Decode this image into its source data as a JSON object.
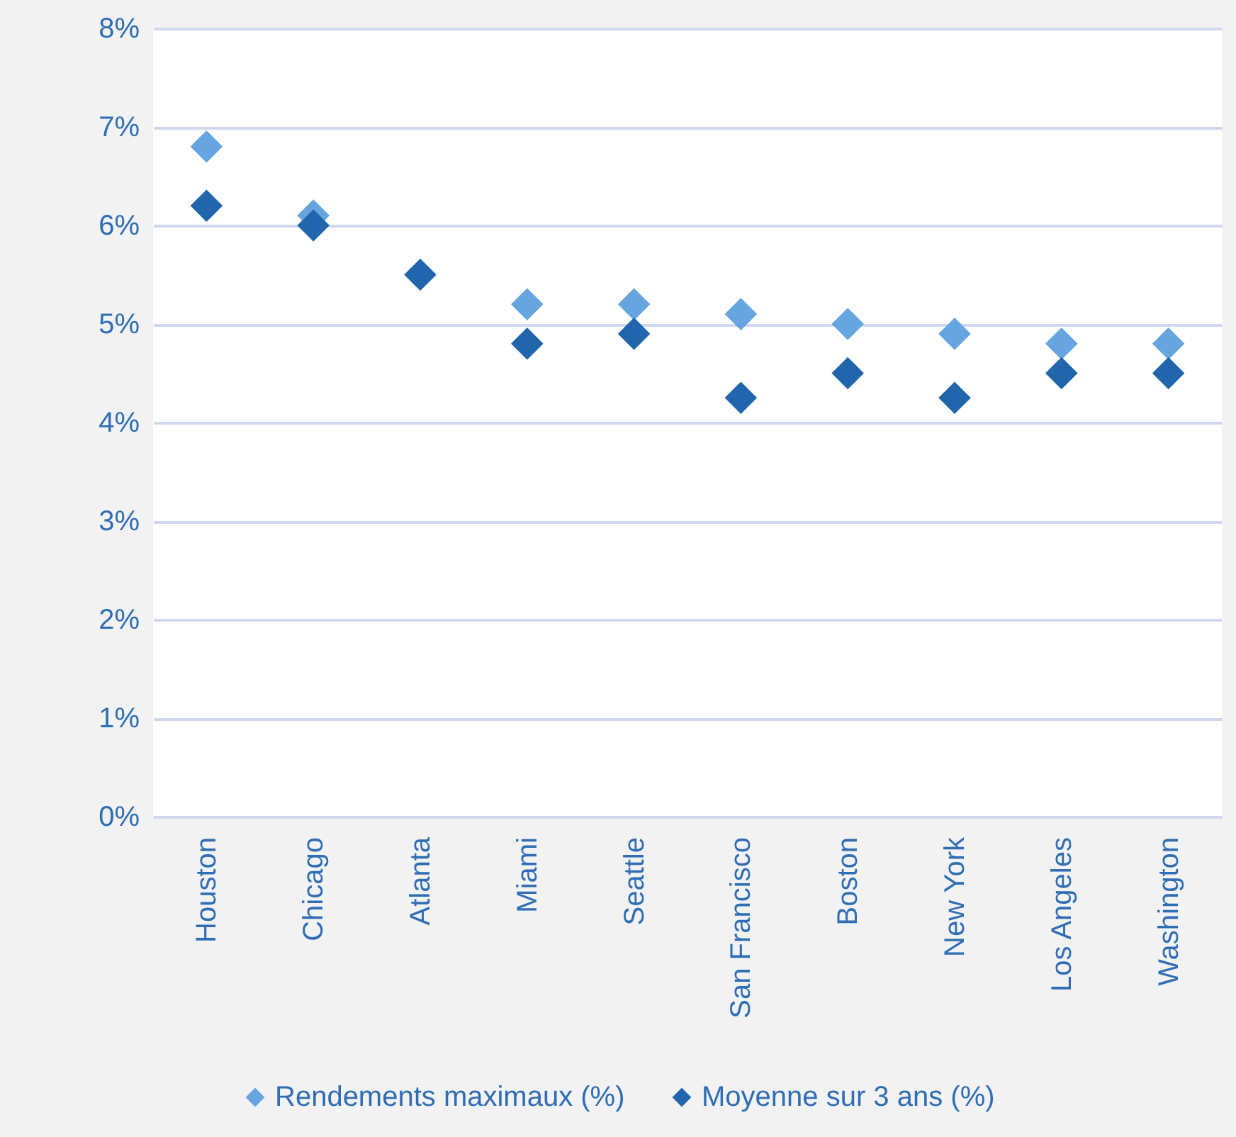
{
  "chart_data": {
    "type": "scatter",
    "categories": [
      "Houston",
      "Chicago",
      "Atlanta",
      "Miami",
      "Seattle",
      "San Francisco",
      "Boston",
      "New York",
      "Los Angeles",
      "Washington"
    ],
    "series": [
      {
        "name": "Rendements maximaux (%)",
        "color": "#67a5e0",
        "values": [
          6.8,
          6.1,
          null,
          5.2,
          5.2,
          5.1,
          5.0,
          4.9,
          4.8,
          4.8
        ]
      },
      {
        "name": "Moyenne sur 3 ans (%)",
        "color": "#2166ac",
        "values": [
          6.2,
          6.0,
          5.5,
          4.8,
          4.9,
          4.25,
          4.5,
          4.25,
          4.5,
          4.5
        ]
      }
    ],
    "ylim": [
      0,
      8
    ],
    "yticks": [
      {
        "value": 0,
        "label": "0%"
      },
      {
        "value": 1,
        "label": "1%"
      },
      {
        "value": 2,
        "label": "2%"
      },
      {
        "value": 3,
        "label": "3%"
      },
      {
        "value": 4,
        "label": "4%"
      },
      {
        "value": 5,
        "label": "5%"
      },
      {
        "value": 6,
        "label": "6%"
      },
      {
        "value": 7,
        "label": "7%"
      },
      {
        "value": 8,
        "label": "8%"
      }
    ],
    "grid": "y",
    "legend": "bottom",
    "marker": "diamond"
  }
}
